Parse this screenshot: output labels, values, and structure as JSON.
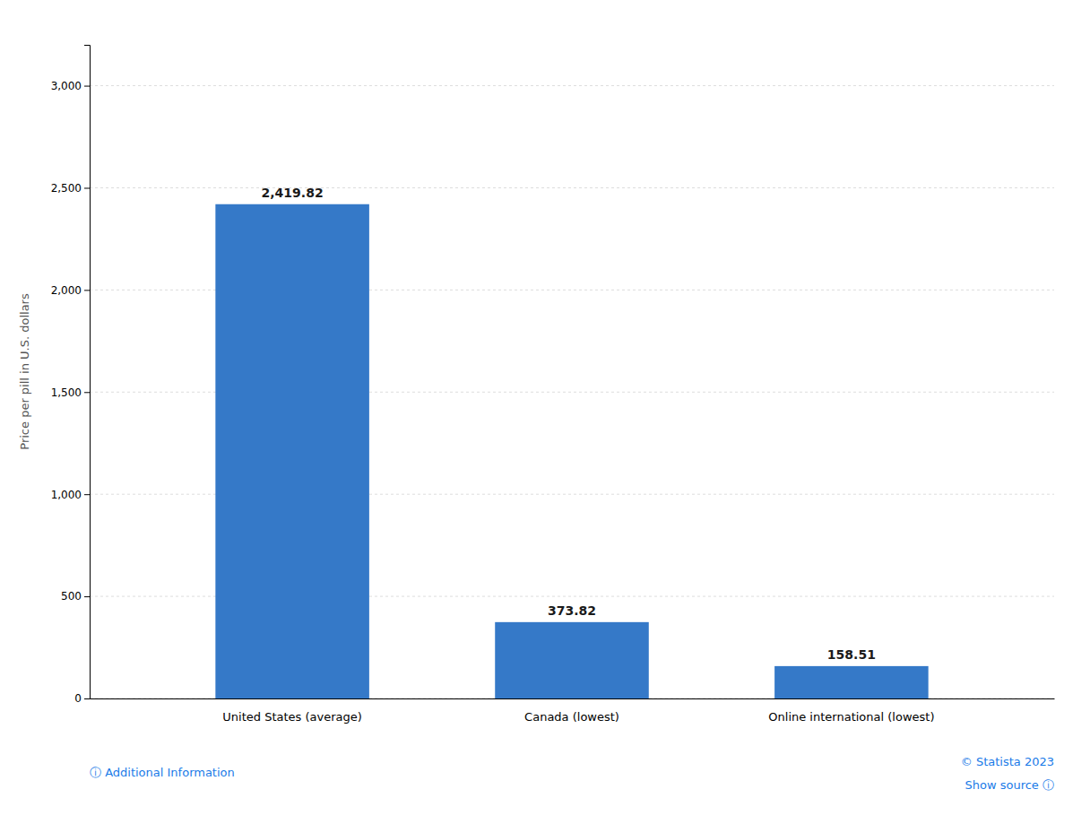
{
  "chart_data": {
    "type": "bar",
    "categories": [
      "United States (average)",
      "Canada (lowest)",
      "Online international (lowest)"
    ],
    "values": [
      2419.82,
      373.82,
      158.51
    ],
    "value_labels": [
      "2,419.82",
      "373.82",
      "158.51"
    ],
    "data_labels": true,
    "color": "#3579c8",
    "y_label": "Price per pill in U.S. dollars",
    "ylim": [
      0,
      3200
    ],
    "yticks": [
      0,
      500,
      {
        "value": 1000,
        "label": "1,000"
      },
      {
        "value": 1500,
        "label": "1,500"
      },
      {
        "value": 2000,
        "label": "2,000"
      },
      {
        "value": 2500,
        "label": "2,500"
      },
      {
        "value": 3000,
        "label": "3,000"
      }
    ],
    "grid": true,
    "annotations": [
      "ⓘ  Additional Information",
      "© Statista 2023",
      "Show source  ⓘ"
    ]
  }
}
